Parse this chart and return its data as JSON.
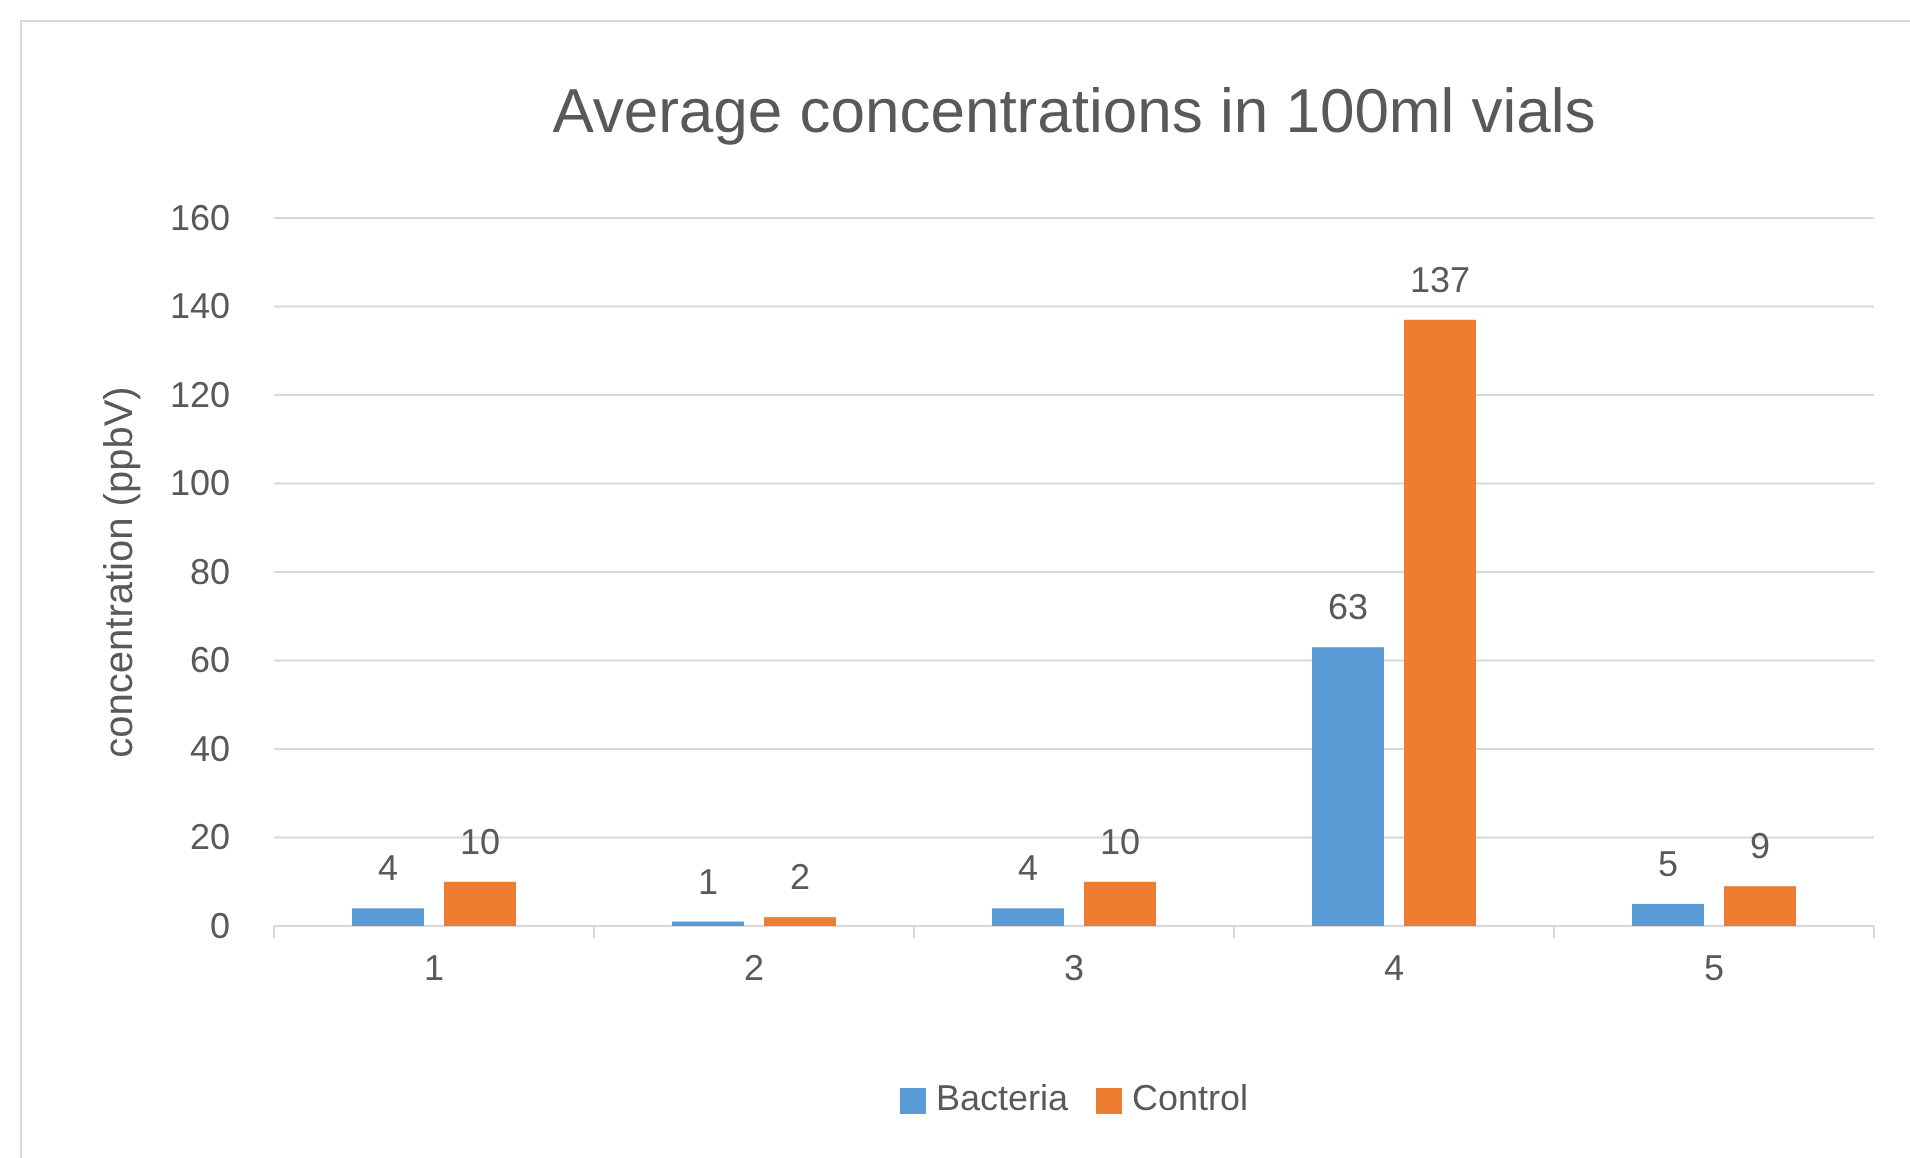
{
  "chart_data": {
    "type": "bar",
    "title": "Average concentrations in 100ml vials",
    "ylabel": "concentration (ppbV)",
    "categories": [
      "1",
      "2",
      "3",
      "4",
      "5"
    ],
    "series": [
      {
        "name": "Bacteria",
        "color": "#5b9bd5",
        "values": [
          4,
          1,
          4,
          63,
          5
        ]
      },
      {
        "name": "Control",
        "color": "#ed7d31",
        "values": [
          10,
          2,
          10,
          137,
          9
        ]
      }
    ],
    "ylim": [
      0,
      160
    ],
    "yticks": [
      0,
      20,
      40,
      60,
      80,
      100,
      120,
      140,
      160
    ],
    "grid": "y",
    "legend": "bottom",
    "data_labels": true
  }
}
